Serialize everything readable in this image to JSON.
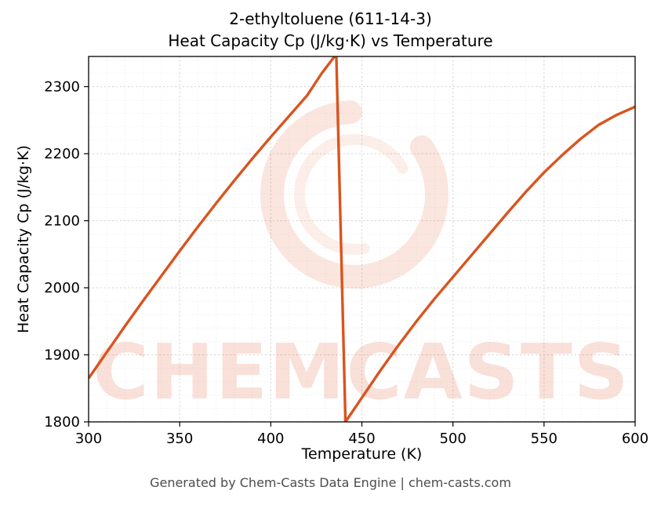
{
  "title": {
    "line1": "2-ethyltoluene (611-14-3)",
    "line2": "Heat Capacity Cp (J/kg·K) vs Temperature"
  },
  "footer": "Generated by Chem-Casts Data Engine | chem-casts.com",
  "watermark": {
    "text": "CHEMCASTS",
    "color": "#e05a2b",
    "text_opacity": 0.18,
    "logo_opacity": 0.15
  },
  "chart_data": {
    "type": "line",
    "title": "2-ethyltoluene (611-14-3) — Heat Capacity Cp (J/kg·K) vs Temperature",
    "xlabel": "Temperature (K)",
    "ylabel": "Heat Capacity Cp (J/kg·K)",
    "xlim": [
      300,
      600
    ],
    "ylim": [
      1800,
      2345
    ],
    "xticks": [
      300,
      350,
      400,
      450,
      500,
      550,
      600
    ],
    "yticks": [
      1800,
      1900,
      2000,
      2100,
      2200,
      2300
    ],
    "grid": true,
    "line_color": "#d9541f",
    "series": [
      {
        "name": "Cp",
        "points": [
          [
            300,
            1865
          ],
          [
            310,
            1904
          ],
          [
            320,
            1943
          ],
          [
            330,
            1981
          ],
          [
            340,
            2018
          ],
          [
            350,
            2055
          ],
          [
            360,
            2091
          ],
          [
            370,
            2126
          ],
          [
            380,
            2160
          ],
          [
            390,
            2193
          ],
          [
            400,
            2225
          ],
          [
            410,
            2256
          ],
          [
            420,
            2287
          ],
          [
            428,
            2320
          ],
          [
            435,
            2345
          ],
          [
            436,
            2344
          ],
          [
            441,
            1800
          ],
          [
            450,
            1836
          ],
          [
            460,
            1876
          ],
          [
            470,
            1914
          ],
          [
            480,
            1950
          ],
          [
            490,
            1984
          ],
          [
            500,
            2016
          ],
          [
            510,
            2048
          ],
          [
            520,
            2080
          ],
          [
            530,
            2112
          ],
          [
            540,
            2143
          ],
          [
            550,
            2172
          ],
          [
            560,
            2198
          ],
          [
            570,
            2222
          ],
          [
            580,
            2243
          ],
          [
            590,
            2258
          ],
          [
            600,
            2270
          ]
        ]
      }
    ]
  }
}
